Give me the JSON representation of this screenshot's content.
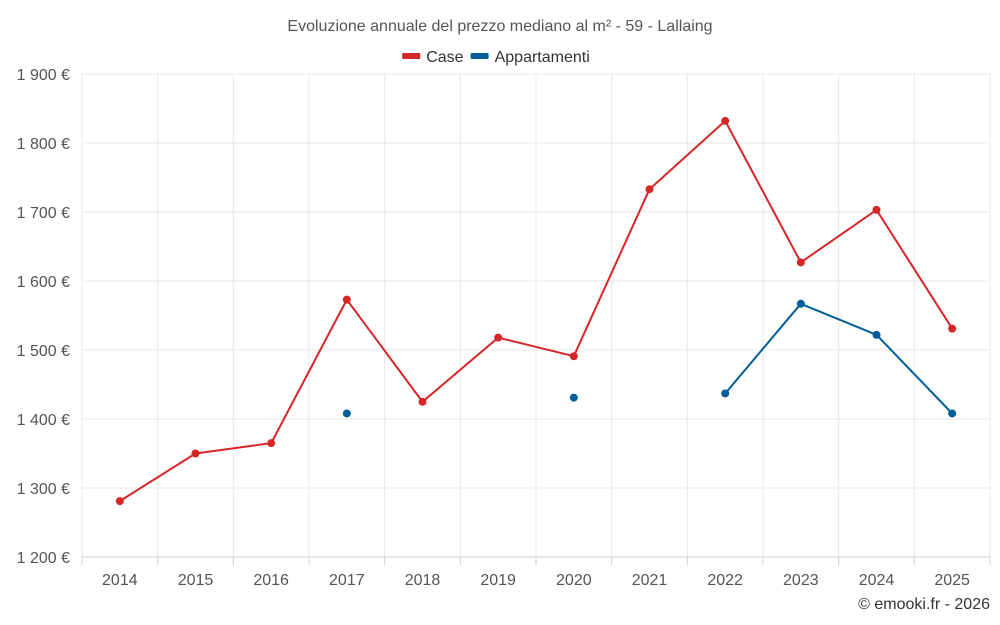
{
  "chart_data": {
    "type": "line",
    "title": "Evoluzione annuale del prezzo mediano al m² - 59 - Lallaing",
    "categories": [
      "2014",
      "2015",
      "2016",
      "2017",
      "2018",
      "2019",
      "2020",
      "2021",
      "2022",
      "2023",
      "2024",
      "2025"
    ],
    "series": [
      {
        "name": "Case",
        "color": "#d62728",
        "values": [
          1281,
          1350,
          1365,
          1573,
          1425,
          1518,
          1491,
          1733,
          1832,
          1627,
          1703,
          1531
        ]
      },
      {
        "name": "Appartamenti",
        "color": "#005f99",
        "values": [
          null,
          null,
          null,
          1408,
          null,
          null,
          1431,
          null,
          1437,
          1567,
          1522,
          1408
        ]
      }
    ],
    "y_ticks": [
      1200,
      1300,
      1400,
      1500,
      1600,
      1700,
      1800,
      1900
    ],
    "y_tick_labels": [
      "1 200 €",
      "1 300 €",
      "1 400 €",
      "1 500 €",
      "1 600 €",
      "1 700 €",
      "1 800 €",
      "1 900 €"
    ],
    "ylim": [
      1200,
      1900
    ],
    "xlabel": "",
    "ylabel": "",
    "grid": true,
    "legend_position": "top-center"
  },
  "credit": "© emooki.fr - 2026"
}
